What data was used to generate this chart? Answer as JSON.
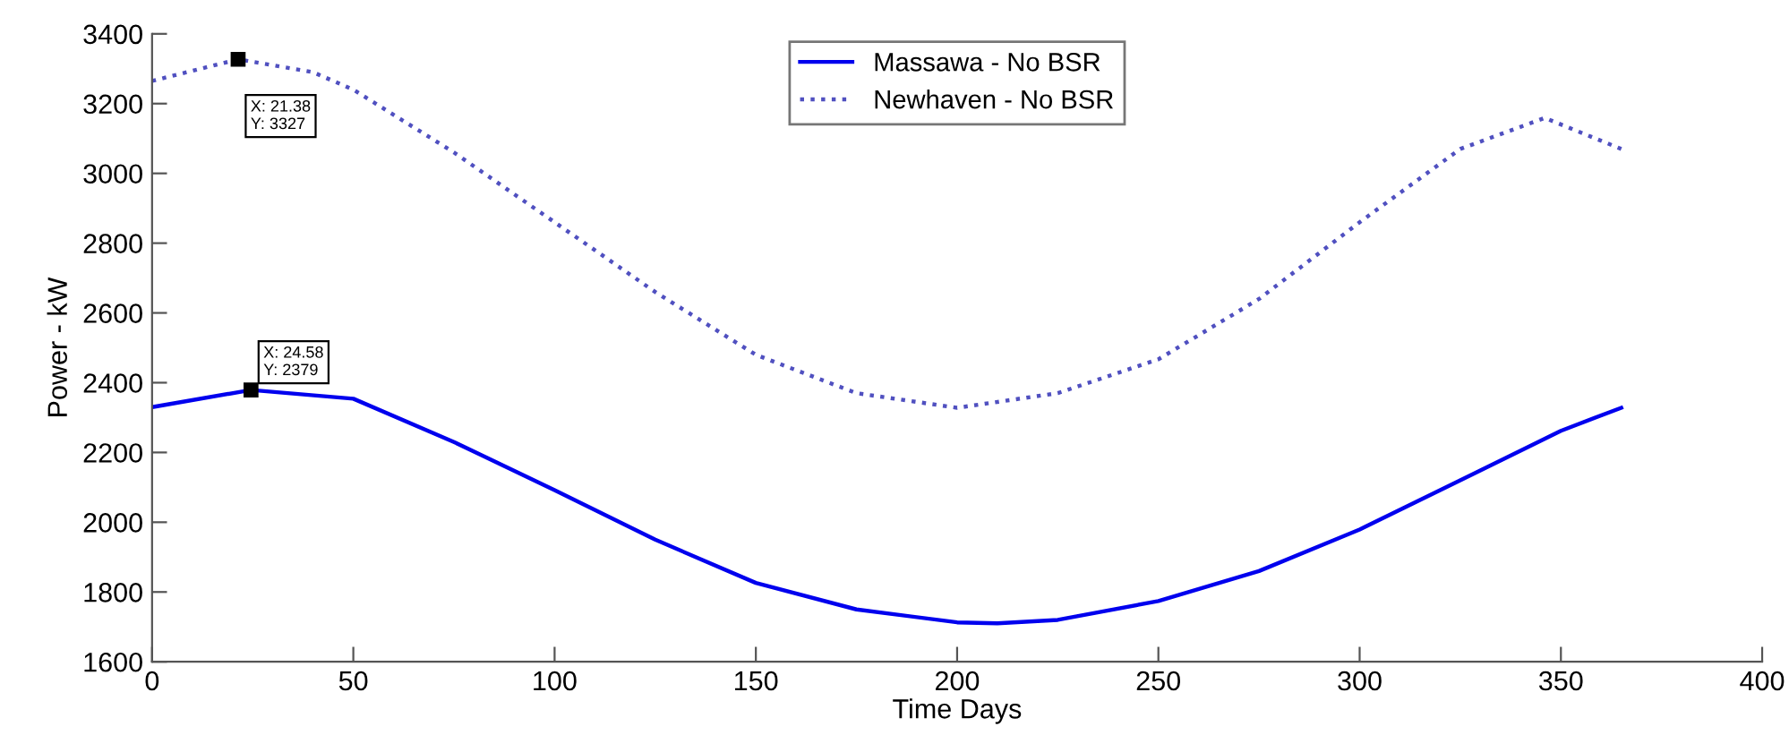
{
  "chart_data": {
    "type": "line",
    "xlabel": "Time Days",
    "ylabel": "Power - kW",
    "xlim": [
      0,
      400
    ],
    "xticks": [
      0,
      50,
      100,
      150,
      200,
      250,
      300,
      350,
      400
    ],
    "ylim": [
      1600,
      3400
    ],
    "yticks": [
      1600,
      1800,
      2000,
      2200,
      2400,
      2600,
      2800,
      3000,
      3200,
      3400
    ],
    "grid": false,
    "legend": "top",
    "series": [
      {
        "name": "Massawa - No BSR",
        "color": "#0000ee",
        "line_style": "solid",
        "x": [
          0,
          24.58,
          50,
          75,
          100,
          125,
          150,
          175,
          200,
          210,
          225,
          250,
          275,
          300,
          325,
          350,
          365
        ],
        "values": [
          2330,
          2379,
          2354,
          2230,
          2092,
          1950,
          1826,
          1750,
          1713,
          1710,
          1720,
          1774,
          1860,
          1979,
          2120,
          2262,
          2328
        ]
      },
      {
        "name": "Newhaven - No BSR",
        "color": "#5050c0",
        "line_style": "dotted",
        "x": [
          0,
          21.38,
          40,
          50,
          75,
          100,
          125,
          150,
          175,
          200,
          225,
          250,
          275,
          300,
          325,
          346,
          365
        ],
        "values": [
          3265,
          3327,
          3290,
          3240,
          3060,
          2860,
          2660,
          2480,
          2370,
          2328,
          2370,
          2467,
          2640,
          2860,
          3070,
          3159,
          3070
        ]
      }
    ],
    "annotations": [
      {
        "text": "X: 21.38\nY: 3327",
        "x": 21.38,
        "y": 3327
      },
      {
        "text": "X: 24.58\nY: 2379",
        "x": 24.58,
        "y": 2379
      }
    ]
  }
}
